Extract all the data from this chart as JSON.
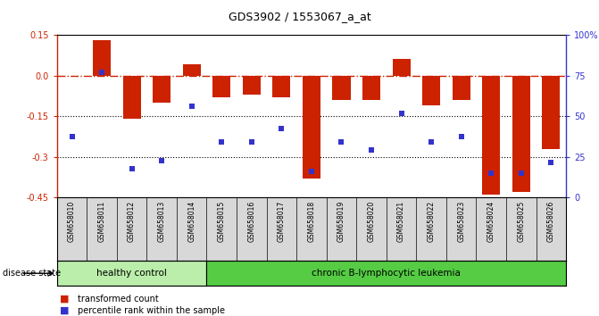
{
  "title": "GDS3902 / 1553067_a_at",
  "samples": [
    "GSM658010",
    "GSM658011",
    "GSM658012",
    "GSM658013",
    "GSM658014",
    "GSM658015",
    "GSM658016",
    "GSM658017",
    "GSM658018",
    "GSM658019",
    "GSM658020",
    "GSM658021",
    "GSM658022",
    "GSM658023",
    "GSM658024",
    "GSM658025",
    "GSM658026"
  ],
  "bar_values": [
    0.0,
    0.13,
    -0.16,
    -0.1,
    0.04,
    -0.08,
    -0.07,
    -0.08,
    -0.38,
    -0.09,
    -0.09,
    0.06,
    -0.11,
    -0.09,
    -0.44,
    -0.43,
    -0.27
  ],
  "blue_values": [
    -0.225,
    0.01,
    -0.345,
    -0.315,
    -0.115,
    -0.245,
    -0.245,
    -0.195,
    -0.355,
    -0.245,
    -0.275,
    -0.14,
    -0.245,
    -0.225,
    -0.36,
    -0.36,
    -0.32
  ],
  "ylim_left": [
    -0.45,
    0.15
  ],
  "ylim_right": [
    0,
    100
  ],
  "right_ticks": [
    0,
    25,
    50,
    75,
    100
  ],
  "right_tick_labels": [
    "0",
    "25",
    "50",
    "75",
    "100%"
  ],
  "left_ticks": [
    -0.45,
    -0.3,
    -0.15,
    0.0,
    0.15
  ],
  "dotted_lines": [
    -0.15,
    -0.3
  ],
  "bar_color": "#cc2200",
  "blue_color": "#3333cc",
  "bar_width": 0.6,
  "healthy_count": 5,
  "group_labels": [
    "healthy control",
    "chronic B-lymphocytic leukemia"
  ],
  "healthy_color": "#bbeeaa",
  "leukemia_color": "#55cc44",
  "disease_label": "disease state",
  "legend_bar_label": "transformed count",
  "legend_blue_label": "percentile rank within the sample",
  "background_color": "#ffffff",
  "plot_bg": "#ffffff",
  "label_bg": "#d8d8d8"
}
